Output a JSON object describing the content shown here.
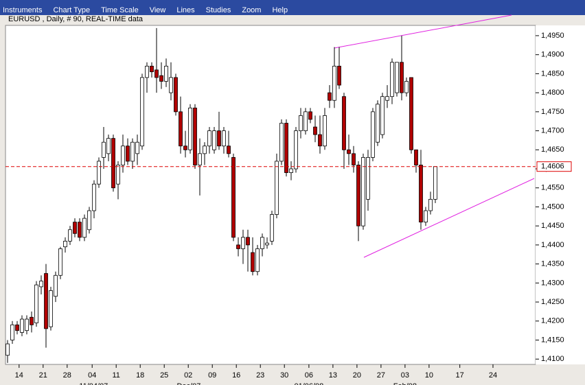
{
  "menu": [
    "Instruments",
    "Chart Type",
    "Time Scale",
    "View",
    "Lines",
    "Studies",
    "Zoom",
    "Help"
  ],
  "chart_data": {
    "type": "candlestick",
    "subtitle": "EURUSD , Daily, # 90, REAL-TIME data",
    "up_color": "#ffffff",
    "down_color": "#b00000",
    "open": [
      1.411,
      1.415,
      1.419,
      1.417,
      1.4175,
      1.421,
      1.4195,
      1.429,
      1.4325,
      1.4185,
      1.4265,
      1.432,
      1.4395,
      1.441,
      1.446,
      1.446,
      1.442,
      1.444,
      1.449,
      1.456,
      1.463,
      1.464,
      1.468,
      1.456,
      1.461,
      1.466,
      1.462,
      1.464,
      1.466,
      1.484,
      1.487,
      1.486,
      1.4845,
      1.483,
      1.48,
      1.484,
      1.475,
      1.466,
      1.465,
      1.476,
      1.461,
      1.464,
      1.466,
      1.465,
      1.47,
      1.466,
      1.466,
      1.463,
      1.44,
      1.439,
      1.442,
      1.438,
      1.433,
      1.439,
      1.44,
      1.441,
      1.448,
      1.462,
      1.472,
      1.459,
      1.46,
      1.47,
      1.47,
      1.475,
      1.471,
      1.469,
      1.466,
      1.48,
      1.478,
      1.487,
      1.479,
      1.465,
      1.464,
      1.461,
      1.445,
      1.452,
      1.463,
      1.467,
      1.469,
      1.478,
      1.479,
      1.48,
      1.488,
      1.48,
      1.484,
      1.465,
      1.461,
      1.446,
      1.449,
      1.452
    ],
    "high": [
      1.415,
      1.42,
      1.42,
      1.4215,
      1.4215,
      1.4225,
      1.4305,
      1.432,
      1.435,
      1.429,
      1.433,
      1.4395,
      1.442,
      1.445,
      1.447,
      1.447,
      1.448,
      1.45,
      1.457,
      1.463,
      1.471,
      1.469,
      1.469,
      1.462,
      1.469,
      1.468,
      1.468,
      1.469,
      1.485,
      1.488,
      1.488,
      1.497,
      1.488,
      1.489,
      1.488,
      1.485,
      1.479,
      1.47,
      1.477,
      1.477,
      1.468,
      1.467,
      1.471,
      1.471,
      1.475,
      1.471,
      1.47,
      1.464,
      1.442,
      1.444,
      1.444,
      1.442,
      1.44,
      1.443,
      1.442,
      1.449,
      1.464,
      1.473,
      1.473,
      1.462,
      1.471,
      1.476,
      1.476,
      1.476,
      1.474,
      1.474,
      1.476,
      1.482,
      1.492,
      1.492,
      1.48,
      1.469,
      1.466,
      1.462,
      1.464,
      1.465,
      1.476,
      1.478,
      1.48,
      1.482,
      1.489,
      1.488,
      1.495,
      1.484,
      1.484,
      1.465,
      1.465,
      1.45,
      1.454,
      1.4606
    ],
    "low": [
      1.409,
      1.414,
      1.4165,
      1.416,
      1.4165,
      1.417,
      1.4185,
      1.427,
      1.413,
      1.4175,
      1.425,
      1.431,
      1.438,
      1.44,
      1.442,
      1.441,
      1.441,
      1.443,
      1.447,
      1.455,
      1.46,
      1.462,
      1.454,
      1.452,
      1.459,
      1.461,
      1.46,
      1.461,
      1.465,
      1.48,
      1.484,
      1.48,
      1.481,
      1.4815,
      1.478,
      1.474,
      1.464,
      1.463,
      1.464,
      1.46,
      1.453,
      1.461,
      1.464,
      1.464,
      1.465,
      1.464,
      1.463,
      1.441,
      1.437,
      1.435,
      1.433,
      1.432,
      1.432,
      1.437,
      1.439,
      1.44,
      1.447,
      1.461,
      1.458,
      1.457,
      1.459,
      1.468,
      1.469,
      1.472,
      1.467,
      1.464,
      1.465,
      1.476,
      1.476,
      1.481,
      1.46,
      1.461,
      1.459,
      1.441,
      1.444,
      1.449,
      1.462,
      1.466,
      1.468,
      1.476,
      1.477,
      1.479,
      1.478,
      1.479,
      1.464,
      1.459,
      1.444,
      1.445,
      1.448,
      1.451
    ],
    "close": [
      1.414,
      1.419,
      1.4175,
      1.4205,
      1.4205,
      1.419,
      1.4295,
      1.4305,
      1.418,
      1.428,
      1.432,
      1.439,
      1.441,
      1.444,
      1.443,
      1.442,
      1.447,
      1.449,
      1.456,
      1.462,
      1.467,
      1.468,
      1.455,
      1.461,
      1.466,
      1.462,
      1.467,
      1.467,
      1.484,
      1.487,
      1.4855,
      1.484,
      1.483,
      1.487,
      1.484,
      1.475,
      1.466,
      1.465,
      1.476,
      1.461,
      1.464,
      1.466,
      1.47,
      1.47,
      1.466,
      1.47,
      1.464,
      1.442,
      1.439,
      1.442,
      1.44,
      1.433,
      1.439,
      1.442,
      1.4405,
      1.448,
      1.462,
      1.472,
      1.459,
      1.46,
      1.47,
      1.474,
      1.475,
      1.473,
      1.469,
      1.466,
      1.474,
      1.478,
      1.487,
      1.482,
      1.465,
      1.464,
      1.461,
      1.445,
      1.463,
      1.463,
      1.475,
      1.477,
      1.479,
      1.479,
      1.488,
      1.488,
      1.48,
      1.483,
      1.465,
      1.461,
      1.446,
      1.449,
      1.452,
      1.4606
    ],
    "last_price": {
      "value": 1.4606,
      "label": "1,4606"
    },
    "last_price_color": "#dd0000",
    "ylim": [
      1.4086,
      1.4977
    ],
    "yticks": [
      {
        "value": 1.41,
        "label": "1,4100"
      },
      {
        "value": 1.415,
        "label": "1,4150"
      },
      {
        "value": 1.42,
        "label": "1,4200"
      },
      {
        "value": 1.425,
        "label": "1,4250"
      },
      {
        "value": 1.43,
        "label": "1,4300"
      },
      {
        "value": 1.435,
        "label": "1,4350"
      },
      {
        "value": 1.44,
        "label": "1,4400"
      },
      {
        "value": 1.445,
        "label": "1,4450"
      },
      {
        "value": 1.45,
        "label": "1,4500"
      },
      {
        "value": 1.455,
        "label": "1,4550"
      },
      {
        "value": 1.46,
        "label": "1,4600"
      },
      {
        "value": 1.465,
        "label": "1,4650"
      },
      {
        "value": 1.47,
        "label": "1,4700"
      },
      {
        "value": 1.475,
        "label": "1,4750"
      },
      {
        "value": 1.48,
        "label": "1,4800"
      },
      {
        "value": 1.485,
        "label": "1,4850"
      },
      {
        "value": 1.49,
        "label": "1,4900"
      },
      {
        "value": 1.495,
        "label": "1,4950"
      }
    ],
    "xlim": [
      -0.43,
      109.86
    ],
    "xticks": [
      {
        "value": 2.4,
        "label": "14"
      },
      {
        "value": 7.4,
        "label": "21"
      },
      {
        "value": 12.4,
        "label": "28"
      },
      {
        "value": 17.6,
        "label": "04"
      },
      {
        "value": 22.6,
        "label": "11"
      },
      {
        "value": 27.6,
        "label": "18"
      },
      {
        "value": 32.6,
        "label": "25"
      },
      {
        "value": 37.6,
        "label": "02"
      },
      {
        "value": 42.6,
        "label": "09"
      },
      {
        "value": 47.6,
        "label": "16"
      },
      {
        "value": 52.6,
        "label": "23"
      },
      {
        "value": 57.6,
        "label": "30"
      },
      {
        "value": 62.7,
        "label": "06"
      },
      {
        "value": 67.7,
        "label": "13"
      },
      {
        "value": 72.7,
        "label": "20"
      },
      {
        "value": 77.7,
        "label": "27"
      },
      {
        "value": 82.7,
        "label": "03"
      },
      {
        "value": 87.7,
        "label": "10"
      },
      {
        "value": 94.1,
        "label": "17"
      },
      {
        "value": 101,
        "label": "24"
      }
    ],
    "month_labels": [
      {
        "value": 17.9,
        "label": "11/04/07"
      },
      {
        "value": 37.7,
        "label": "Dec/07"
      },
      {
        "value": 62.7,
        "label": "01/06/08"
      },
      {
        "value": 82.7,
        "label": "Feb/08"
      }
    ]
  }
}
